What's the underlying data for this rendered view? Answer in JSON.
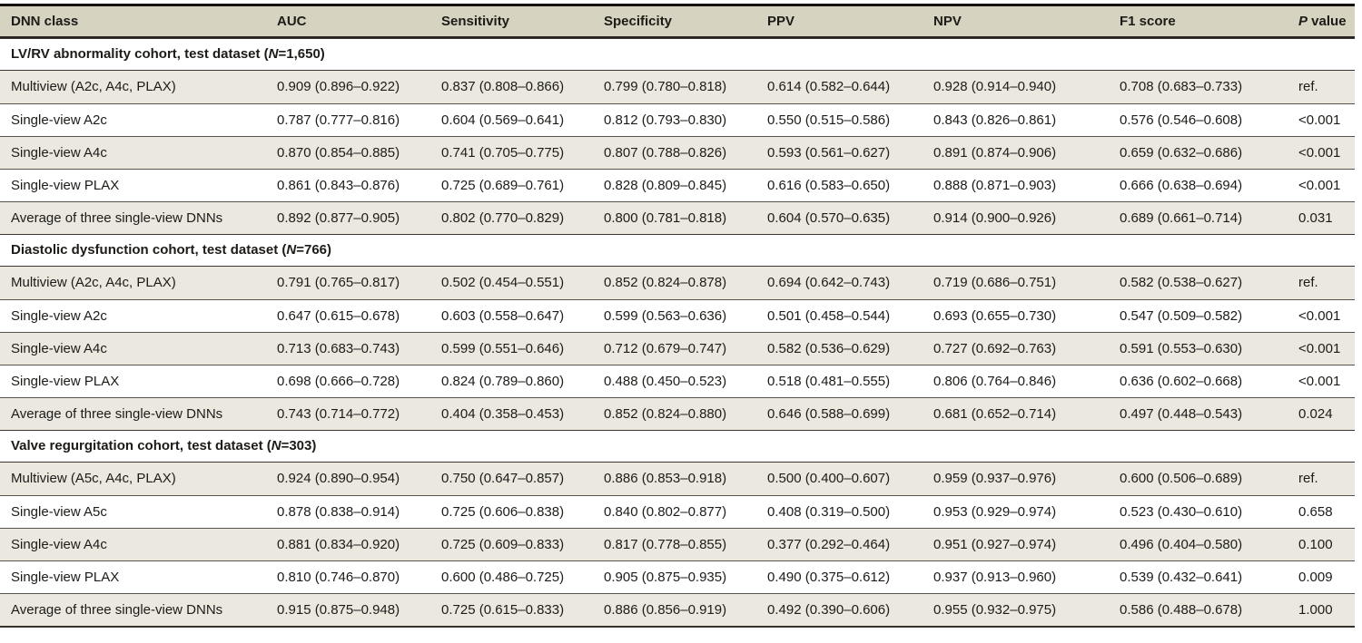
{
  "colors": {
    "header_background": "#d7d3c1",
    "shaded_row_background": "#ebe8e0",
    "text": "#1d1b18",
    "top_rule": "#15130f",
    "section_rule": "#3a3732",
    "row_divider": "#55524b"
  },
  "table": {
    "columns": [
      {
        "key": "dnn_class",
        "label": "DNN class"
      },
      {
        "key": "auc",
        "label": "AUC"
      },
      {
        "key": "sensitivity",
        "label": "Sensitivity"
      },
      {
        "key": "specificity",
        "label": "Specificity"
      },
      {
        "key": "ppv",
        "label": "PPV"
      },
      {
        "key": "npv",
        "label": "NPV"
      },
      {
        "key": "f1_score",
        "label": "F1 score"
      },
      {
        "key": "p_value",
        "label_italic": "P",
        "label_rest": " value"
      }
    ],
    "sections": [
      {
        "title_prefix": "LV/RV abnormality cohort, test dataset (",
        "title_n": "N",
        "title_suffix": "=1,650)",
        "rows": [
          {
            "cells": [
              "Multiview (A2c, A4c, PLAX)",
              "0.909 (0.896–0.922)",
              "0.837 (0.808–0.866)",
              "0.799 (0.780–0.818)",
              "0.614 (0.582–0.644)",
              "0.928 (0.914–0.940)",
              "0.708 (0.683–0.733)",
              "ref."
            ]
          },
          {
            "cells": [
              "Single-view A2c",
              "0.787 (0.777–0.816)",
              "0.604 (0.569–0.641)",
              "0.812 (0.793–0.830)",
              "0.550 (0.515–0.586)",
              "0.843 (0.826–0.861)",
              "0.576 (0.546–0.608)",
              "<0.001"
            ]
          },
          {
            "cells": [
              "Single-view A4c",
              "0.870 (0.854–0.885)",
              "0.741 (0.705–0.775)",
              "0.807 (0.788–0.826)",
              "0.593 (0.561–0.627)",
              "0.891 (0.874–0.906)",
              "0.659 (0.632–0.686)",
              "<0.001"
            ]
          },
          {
            "cells": [
              "Single-view PLAX",
              "0.861 (0.843–0.876)",
              "0.725 (0.689–0.761)",
              "0.828 (0.809–0.845)",
              "0.616 (0.583–0.650)",
              "0.888 (0.871–0.903)",
              "0.666 (0.638–0.694)",
              "<0.001"
            ]
          },
          {
            "cells": [
              "Average of three single-view DNNs",
              "0.892 (0.877–0.905)",
              "0.802 (0.770–0.829)",
              "0.800 (0.781–0.818)",
              "0.604 (0.570–0.635)",
              "0.914 (0.900–0.926)",
              "0.689 (0.661–0.714)",
              "0.031"
            ]
          }
        ]
      },
      {
        "title_prefix": "Diastolic dysfunction cohort, test dataset (",
        "title_n": "N",
        "title_suffix": "=766)",
        "rows": [
          {
            "cells": [
              "Multiview (A2c, A4c, PLAX)",
              "0.791 (0.765–0.817)",
              "0.502 (0.454–0.551)",
              "0.852 (0.824–0.878)",
              "0.694 (0.642–0.743)",
              "0.719 (0.686–0.751)",
              "0.582 (0.538–0.627)",
              "ref."
            ]
          },
          {
            "cells": [
              "Single-view A2c",
              "0.647 (0.615–0.678)",
              "0.603 (0.558–0.647)",
              "0.599 (0.563–0.636)",
              "0.501 (0.458–0.544)",
              "0.693 (0.655–0.730)",
              "0.547 (0.509–0.582)",
              "<0.001"
            ]
          },
          {
            "cells": [
              "Single-view A4c",
              "0.713 (0.683–0.743)",
              "0.599 (0.551–0.646)",
              "0.712 (0.679–0.747)",
              "0.582 (0.536–0.629)",
              "0.727 (0.692–0.763)",
              "0.591 (0.553–0.630)",
              "<0.001"
            ]
          },
          {
            "cells": [
              "Single-view PLAX",
              "0.698 (0.666–0.728)",
              "0.824 (0.789–0.860)",
              "0.488 (0.450–0.523)",
              "0.518 (0.481–0.555)",
              "0.806 (0.764–0.846)",
              "0.636 (0.602–0.668)",
              "<0.001"
            ]
          },
          {
            "cells": [
              "Average of three single-view DNNs",
              "0.743 (0.714–0.772)",
              "0.404 (0.358–0.453)",
              "0.852 (0.824–0.880)",
              "0.646 (0.588–0.699)",
              "0.681 (0.652–0.714)",
              "0.497 (0.448–0.543)",
              "0.024"
            ]
          }
        ]
      },
      {
        "title_prefix": "Valve regurgitation cohort, test dataset (",
        "title_n": "N",
        "title_suffix": "=303)",
        "rows": [
          {
            "cells": [
              "Multiview (A5c, A4c, PLAX)",
              "0.924 (0.890–0.954)",
              "0.750 (0.647–0.857)",
              "0.886 (0.853–0.918)",
              "0.500 (0.400–0.607)",
              "0.959 (0.937–0.976)",
              "0.600 (0.506–0.689)",
              "ref."
            ]
          },
          {
            "cells": [
              "Single-view A5c",
              "0.878 (0.838–0.914)",
              "0.725 (0.606–0.838)",
              "0.840 (0.802–0.877)",
              "0.408 (0.319–0.500)",
              "0.953 (0.929–0.974)",
              "0.523 (0.430–0.610)",
              "0.658"
            ]
          },
          {
            "cells": [
              "Single-view A4c",
              "0.881 (0.834–0.920)",
              "0.725 (0.609–0.833)",
              "0.817 (0.778–0.855)",
              "0.377 (0.292–0.464)",
              "0.951 (0.927–0.974)",
              "0.496 (0.404–0.580)",
              "0.100"
            ]
          },
          {
            "cells": [
              "Single-view PLAX",
              "0.810 (0.746–0.870)",
              "0.600 (0.486–0.725)",
              "0.905 (0.875–0.935)",
              "0.490 (0.375–0.612)",
              "0.937 (0.913–0.960)",
              "0.539 (0.432–0.641)",
              "0.009"
            ]
          },
          {
            "cells": [
              "Average of three single-view DNNs",
              "0.915 (0.875–0.948)",
              "0.725 (0.615–0.833)",
              "0.886 (0.856–0.919)",
              "0.492 (0.390–0.606)",
              "0.955 (0.932–0.975)",
              "0.586 (0.488–0.678)",
              "1.000"
            ]
          }
        ]
      }
    ]
  }
}
